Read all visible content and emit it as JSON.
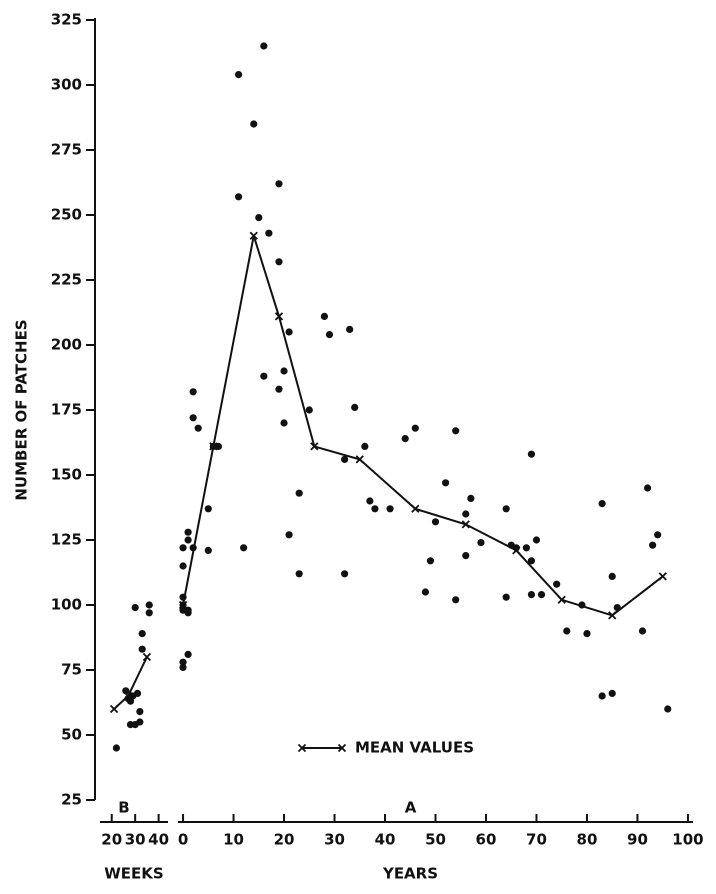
{
  "chart_data": [
    {
      "type": "scatter",
      "panel_label": "B",
      "x_label": "WEEKS",
      "y_label": "NUMBER OF PATCHES",
      "xlim": [
        15,
        44
      ],
      "xticks": [
        20,
        30,
        40
      ],
      "ylim": [
        25,
        325
      ],
      "yticks": [
        25,
        50,
        75,
        100,
        125,
        150,
        175,
        200,
        225,
        250,
        275,
        300,
        325
      ],
      "series": [
        {
          "mode": "markers",
          "color": "#111111",
          "x": [
            22,
            26,
            27,
            28,
            28,
            29,
            30,
            30,
            31,
            32,
            32,
            33,
            33,
            36,
            36
          ],
          "values": [
            45,
            67,
            64,
            63,
            54,
            65,
            54,
            99,
            66,
            55,
            59,
            89,
            83,
            100,
            97
          ]
        },
        {
          "mode": "lines+markers",
          "color": "#111111",
          "x": [
            21,
            27,
            35
          ],
          "values": [
            60,
            65,
            80
          ]
        }
      ]
    },
    {
      "type": "scatter",
      "panel_label": "A",
      "x_label": "YEARS",
      "xlim": [
        -1,
        101
      ],
      "xticks": [
        0,
        10,
        20,
        30,
        40,
        50,
        60,
        70,
        80,
        90,
        100
      ],
      "ylim": [
        25,
        325
      ],
      "series": [
        {
          "mode": "markers",
          "color": "#111111",
          "x": [
            0,
            0,
            0,
            0,
            0,
            0,
            0,
            1,
            1,
            1,
            1,
            1,
            2,
            2,
            3,
            2,
            5,
            5,
            6,
            7,
            11,
            11,
            12,
            14,
            16,
            15,
            16,
            17,
            19,
            19,
            19,
            20,
            20,
            21,
            21,
            23,
            23,
            25,
            28,
            29,
            32,
            32,
            33,
            34,
            36,
            37,
            38,
            41,
            44,
            46,
            48,
            49,
            50,
            52,
            54,
            54,
            56,
            56,
            57,
            59,
            64,
            64,
            65,
            66,
            68,
            69,
            70,
            69,
            69,
            71,
            74,
            76,
            79,
            80,
            83,
            83,
            85,
            85,
            86,
            91,
            92,
            93,
            94,
            96
          ],
          "values": [
            103,
            100,
            98,
            78,
            76,
            115,
            122,
            128,
            125,
            97,
            98,
            81,
            182,
            172,
            168,
            122,
            137,
            121,
            161,
            161,
            304,
            257,
            122,
            285,
            315,
            249,
            188,
            243,
            262,
            232,
            183,
            190,
            170,
            205,
            127,
            143,
            112,
            175,
            211,
            204,
            156,
            112,
            206,
            176,
            161,
            140,
            137,
            137,
            164,
            168,
            105,
            117,
            132,
            147,
            167,
            102,
            119,
            135,
            141,
            124,
            137,
            103,
            123,
            122,
            122,
            158,
            125,
            117,
            104,
            104,
            108,
            90,
            100,
            89,
            139,
            65,
            66,
            111,
            99,
            90,
            145,
            123,
            127,
            60
          ]
        },
        {
          "name": "MEAN VALUES",
          "mode": "lines+markers",
          "color": "#111111",
          "x": [
            0,
            6,
            14,
            19,
            26,
            35,
            46,
            56,
            66,
            75,
            85,
            95
          ],
          "values": [
            100,
            161,
            242,
            211,
            161,
            156,
            137,
            131,
            121,
            102,
            96,
            111
          ]
        }
      ]
    }
  ]
}
